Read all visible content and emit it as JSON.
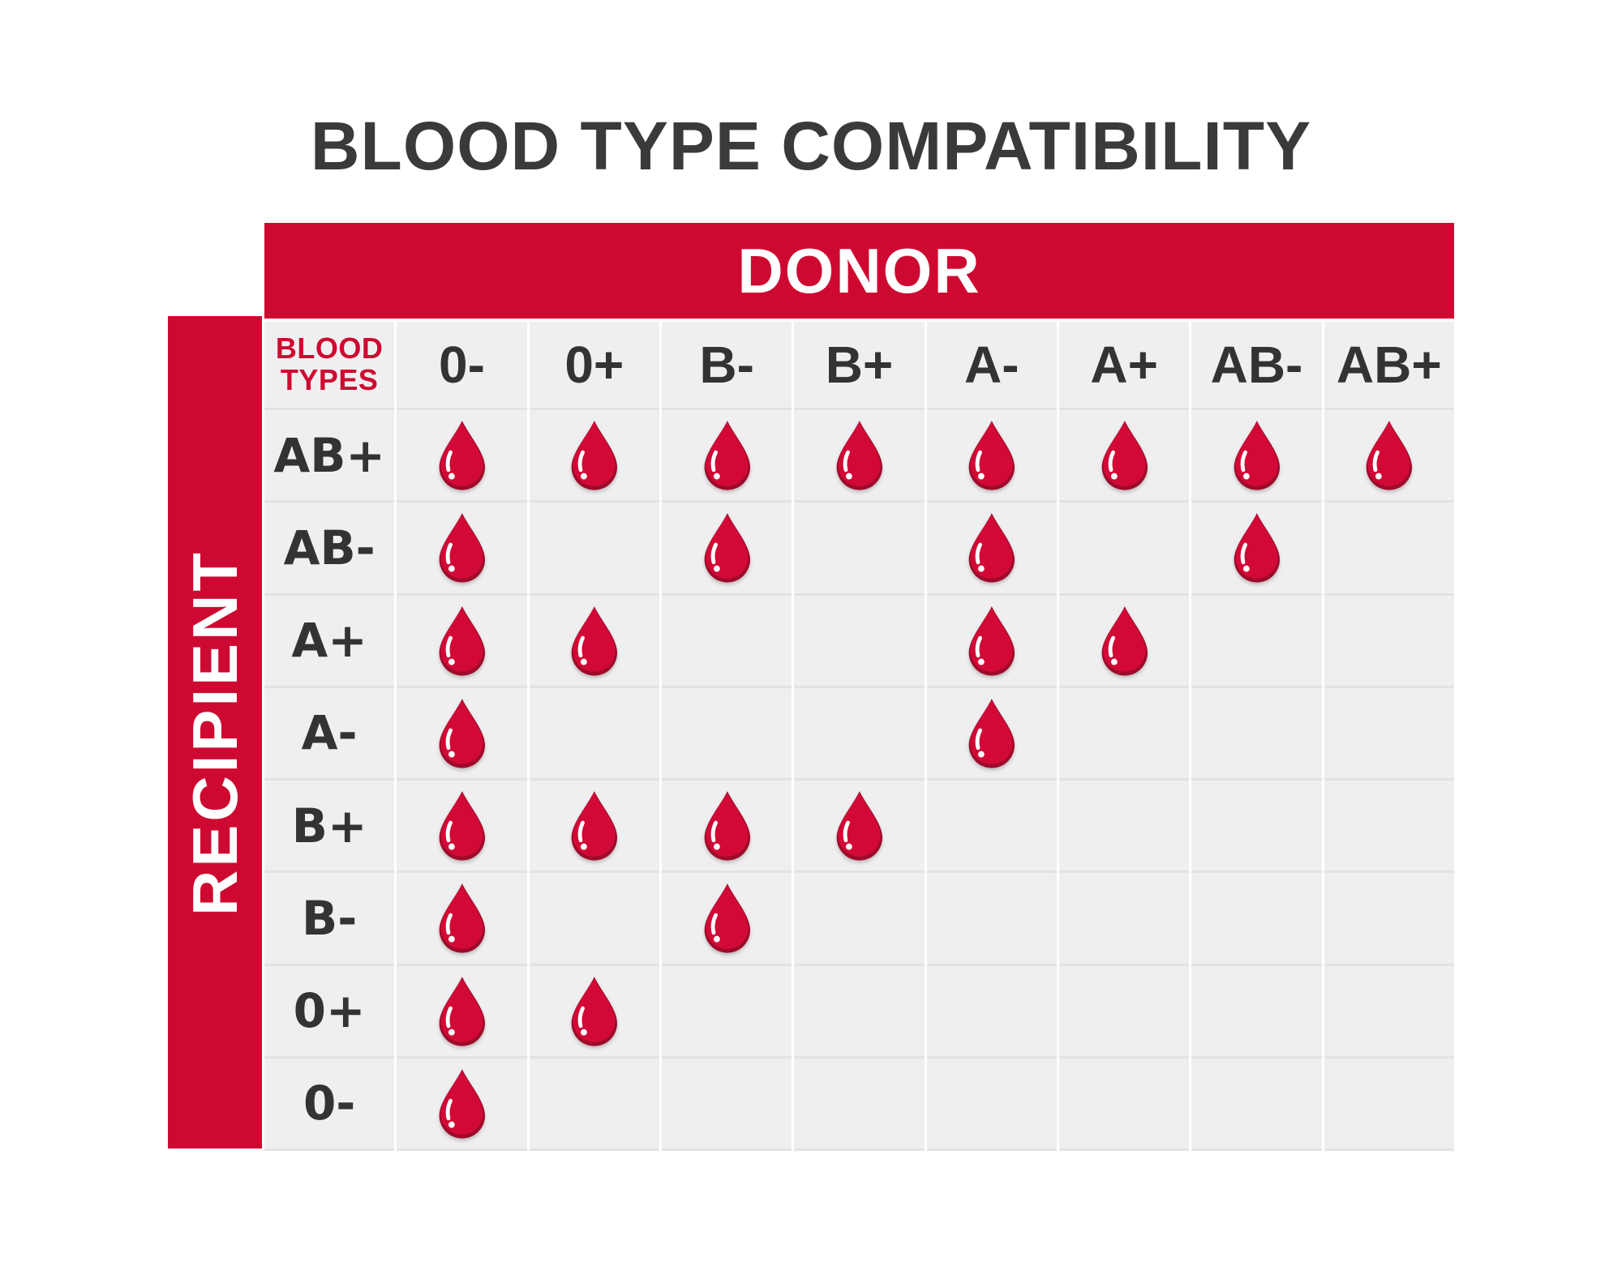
{
  "title": "BLOOD TYPE COMPATIBILITY",
  "donor_header": "DONOR",
  "recipient_header": "RECIPIENT",
  "corner_label_lines": [
    "BLOOD",
    "TYPES"
  ],
  "colors": {
    "page_bg": "#ffffff",
    "primary_red": "#ce0931",
    "drop_red": "#d20936",
    "drop_shade_red": "#9e0a2a",
    "drop_highlight": "#ffffff",
    "cell_background": "#f0eff0",
    "row_line": "#e3e2e3",
    "title_text": "#3a3a3c",
    "label_text": "#333333",
    "header_text_on_red": "#ffffff"
  },
  "icons": {
    "compatible_marker": "blood-drop-icon"
  },
  "chart_data": {
    "type": "table",
    "title": "BLOOD TYPE COMPATIBILITY",
    "columns_axis_label": "DONOR",
    "rows_axis_label": "RECIPIENT",
    "corner_label": "BLOOD TYPES",
    "donor_types": [
      "0-",
      "0+",
      "B-",
      "B+",
      "A-",
      "A+",
      "AB-",
      "AB+"
    ],
    "recipient_types": [
      "AB+",
      "AB-",
      "A+",
      "A-",
      "B+",
      "B-",
      "0+",
      "0-"
    ],
    "compatibility_matrix": [
      [
        1,
        1,
        1,
        1,
        1,
        1,
        1,
        1
      ],
      [
        1,
        0,
        1,
        0,
        1,
        0,
        1,
        0
      ],
      [
        1,
        1,
        0,
        0,
        1,
        1,
        0,
        0
      ],
      [
        1,
        0,
        0,
        0,
        1,
        0,
        0,
        0
      ],
      [
        1,
        1,
        1,
        1,
        0,
        0,
        0,
        0
      ],
      [
        1,
        0,
        1,
        0,
        0,
        0,
        0,
        0
      ],
      [
        1,
        1,
        0,
        0,
        0,
        0,
        0,
        0
      ],
      [
        1,
        0,
        0,
        0,
        0,
        0,
        0,
        0
      ]
    ]
  }
}
